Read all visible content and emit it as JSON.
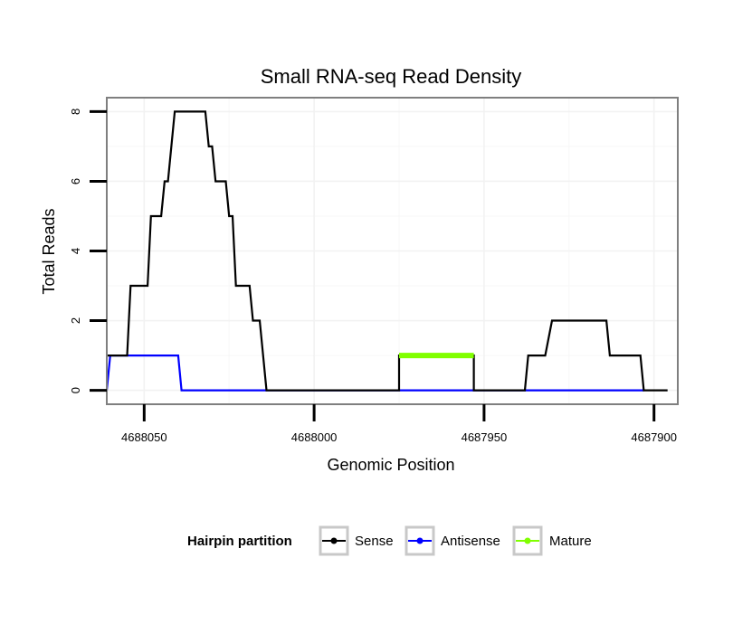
{
  "chart_data": {
    "type": "line",
    "title": "Small RNA-seq Read Density",
    "xlabel": "Genomic Position",
    "ylabel": "Total Reads",
    "xlim": [
      4688061,
      4687893
    ],
    "ylim": [
      -0.4,
      8.4
    ],
    "x_reversed": true,
    "grid": true,
    "x_ticks": [
      4688050,
      4688000,
      4687950,
      4687900
    ],
    "x_tick_labels": [
      "4688050",
      "4688000",
      "4687950",
      "4687900"
    ],
    "y_ticks": [
      0,
      2,
      4,
      6,
      8
    ],
    "y_tick_labels": [
      "0",
      "2",
      "4",
      "6",
      "8"
    ],
    "legend": {
      "title": "Hairpin partition",
      "position": "bottom",
      "entries": [
        {
          "label": "Sense",
          "color": "#000000"
        },
        {
          "label": "Antisense",
          "color": "#0000ff"
        },
        {
          "label": "Mature",
          "color": "#80ff00"
        }
      ]
    },
    "series": [
      {
        "name": "Sense",
        "color": "#000000",
        "points": [
          [
            4688061,
            1
          ],
          [
            4688055,
            1
          ],
          [
            4688054,
            3
          ],
          [
            4688049,
            3
          ],
          [
            4688048,
            5
          ],
          [
            4688045,
            5
          ],
          [
            4688044,
            6
          ],
          [
            4688043,
            6
          ],
          [
            4688041,
            8
          ],
          [
            4688032,
            8
          ],
          [
            4688031,
            7
          ],
          [
            4688030,
            7
          ],
          [
            4688029,
            6
          ],
          [
            4688026,
            6
          ],
          [
            4688025,
            5
          ],
          [
            4688024,
            5
          ],
          [
            4688023,
            3
          ],
          [
            4688019,
            3
          ],
          [
            4688018,
            2
          ],
          [
            4688016,
            2
          ],
          [
            4688014,
            0
          ],
          [
            4687975,
            0
          ],
          [
            4687975,
            1
          ],
          [
            4687953,
            1
          ],
          [
            4687953,
            0
          ],
          [
            4687938,
            0
          ],
          [
            4687937,
            1
          ],
          [
            4687932,
            1
          ],
          [
            4687930,
            2
          ],
          [
            4687914,
            2
          ],
          [
            4687913,
            1
          ],
          [
            4687904,
            1
          ],
          [
            4687903,
            0
          ],
          [
            4687896,
            0
          ]
        ]
      },
      {
        "name": "Antisense",
        "color": "#0000ff",
        "points": [
          [
            4688061,
            0
          ],
          [
            4688060,
            1
          ],
          [
            4688040,
            1
          ],
          [
            4688039,
            0
          ],
          [
            4687903,
            0
          ]
        ]
      },
      {
        "name": "Mature",
        "color": "#80ff00",
        "points": [
          [
            4687975,
            1
          ],
          [
            4687953,
            1
          ]
        ]
      }
    ]
  }
}
